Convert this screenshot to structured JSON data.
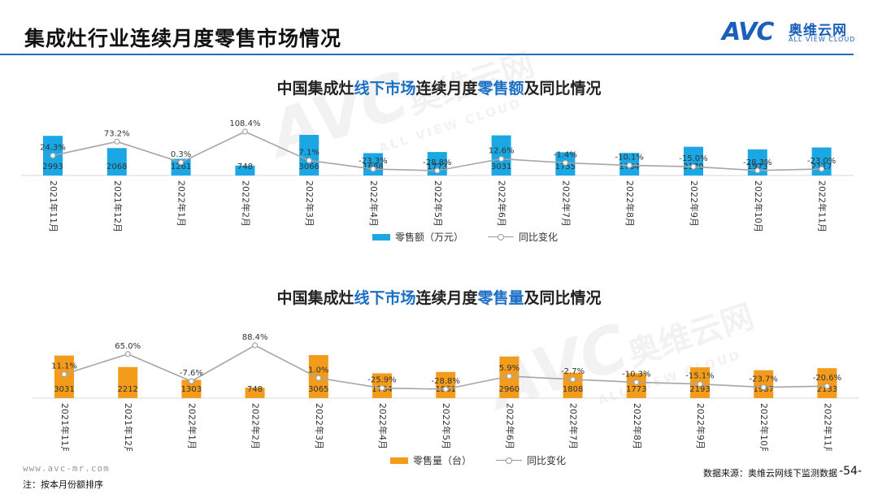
{
  "slide_title": "集成灶行业连续月度零售市场情况",
  "logo": {
    "mark": "AVC",
    "cn": "奥维云网",
    "en": "ALL VIEW CLOUD"
  },
  "charts": [
    {
      "title_parts": [
        "中国集成灶",
        "线下市场",
        "连续月度",
        "零售额",
        "及同比情况"
      ],
      "legend_bar": "零售额（万元）",
      "legend_line": "同比变化"
    },
    {
      "title_parts": [
        "中国集成灶",
        "线下市场",
        "连续月度",
        "零售量",
        "及同比情况"
      ],
      "legend_bar": "零售量（台）",
      "legend_line": "同比变化"
    }
  ],
  "chart_data": [
    {
      "type": "bar",
      "title": "中国集成灶线下市场连续月度零售额及同比情况",
      "categories": [
        "2021年11月",
        "2021年12月",
        "2022年1月",
        "2022年2月",
        "2022年3月",
        "2022年4月",
        "2022年5月",
        "2022年6月",
        "2022年7月",
        "2022年8月",
        "2022年9月",
        "2022年10月",
        "2022年11月"
      ],
      "series": [
        {
          "name": "零售额（万元）",
          "type": "bar",
          "color": "#1aa7e4",
          "values": [
            2993,
            2068,
            1261,
            748,
            3066,
            1688,
            1773,
            3031,
            1755,
            1704,
            2170,
            1973,
            2117
          ]
        },
        {
          "name": "同比变化",
          "type": "line",
          "color": "#a6a6a6",
          "values": [
            24.3,
            73.2,
            0.3,
            108.4,
            7.1,
            -23.3,
            -28.8,
            12.6,
            -1.4,
            -10.1,
            -15.0,
            -28.3,
            -23.0
          ],
          "labels": [
            "24.3%",
            "73.2%",
            "0.3%",
            "108.4%",
            "7.1%",
            "-23.3%",
            "-28.8%",
            "12.6%",
            "-1.4%",
            "-10.1%",
            "-15.0%",
            "-28.3%",
            "-23.0%"
          ]
        }
      ],
      "grid": false,
      "legend_position": "bottom"
    },
    {
      "type": "bar",
      "title": "中国集成灶线下市场连续月度零售量及同比情况",
      "categories": [
        "2021年11月",
        "2021年12月",
        "2022年1月",
        "2022年2月",
        "2022年3月",
        "2022年4月",
        "2022年5月",
        "2022年6月",
        "2022年7月",
        "2022年8月",
        "2022年9月",
        "2022年10月",
        "2022年11月"
      ],
      "series": [
        {
          "name": "零售量（台）",
          "type": "bar",
          "color": "#f39c1c",
          "values": [
            3031,
            2212,
            1303,
            748,
            3065,
            1764,
            1861,
            2960,
            1808,
            1773,
            2193,
            1987,
            2133
          ]
        },
        {
          "name": "同比变化",
          "type": "line",
          "color": "#a6a6a6",
          "values": [
            11.1,
            65.0,
            -7.6,
            88.4,
            1.0,
            -25.9,
            -28.8,
            5.9,
            -2.7,
            -10.3,
            -15.1,
            -23.7,
            -20.6
          ],
          "labels": [
            "11.1%",
            "65.0%",
            "-7.6%",
            "88.4%",
            "1.0%",
            "-25.9%",
            "-28.8%",
            "5.9%",
            "-2.7%",
            "-10.3%",
            "-15.1%",
            "-23.7%",
            "-20.6%"
          ]
        }
      ],
      "grid": false,
      "legend_position": "bottom"
    }
  ],
  "website": "www.avc-mr.com",
  "footnote": "注：按本月份额排序",
  "source": "数据来源：奥维云网线下监测数据",
  "page_number": "-54-",
  "colors": {
    "accent_blue": "#1b6fc4",
    "bar_blue": "#1aa7e4",
    "bar_orange": "#f39c1c",
    "line_gray": "#a6a6a6"
  }
}
